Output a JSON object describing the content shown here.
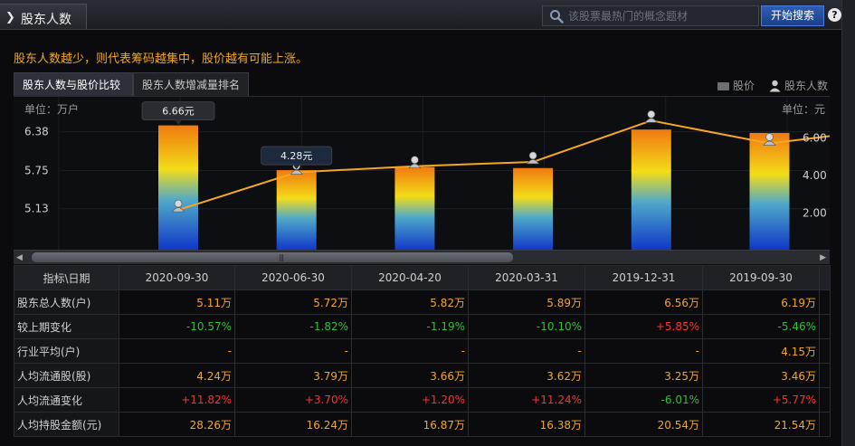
{
  "header": {
    "title": "股东人数",
    "search_placeholder": "该股票最热门的概念题材",
    "search_button": "开始搜索",
    "help": "?"
  },
  "tip": "股东人数越少，则代表筹码越集中，股价越有可能上涨。",
  "tabs": [
    {
      "label": "股东人数与股价比较",
      "active": true
    },
    {
      "label": "股东人数增减量排名",
      "active": false
    }
  ],
  "legend": {
    "price": "股价",
    "holders": "股东人数"
  },
  "chart_data": {
    "type": "bar",
    "unit_left": "单位：万户",
    "unit_right": "单位：元",
    "left_ticks": [
      "6.38",
      "5.75",
      "5.13"
    ],
    "right_ticks": [
      "6.00",
      "4.00",
      "2.00"
    ],
    "categories": [
      "2020-09-30",
      "2020-06-30",
      "2020-04-20",
      "2020-03-31",
      "2019-12-31",
      "2019-09-30"
    ],
    "series": [
      {
        "name": "股价",
        "type": "bar",
        "values": [
          6.66,
          4.28,
          4.45,
          4.39,
          6.44,
          6.26
        ]
      },
      {
        "name": "股东人数",
        "type": "line",
        "values": [
          5.11,
          5.72,
          5.82,
          5.89,
          6.56,
          6.19
        ]
      }
    ],
    "price_labels": [
      "6.66元",
      "4.28元"
    ],
    "colors": {
      "bar_top": "#f07a10",
      "bar_mid": "#f3dc18",
      "bar_bottom": "#0f35c8",
      "line": "#f5a623"
    }
  },
  "table": {
    "header_label": "指标\\日期",
    "dates": [
      "2020-09-30",
      "2020-06-30",
      "2020-04-20",
      "2020-03-31",
      "2019-12-31",
      "2019-09-30"
    ],
    "rows": [
      {
        "label": "股东总人数(户)",
        "values": [
          "5.11万",
          "5.72万",
          "5.82万",
          "5.89万",
          "6.56万",
          "6.19万"
        ],
        "colors": [
          "orange",
          "orange",
          "orange",
          "orange",
          "orange",
          "orange"
        ]
      },
      {
        "label": "较上期变化",
        "values": [
          "-10.57%",
          "-1.82%",
          "-1.19%",
          "-10.10%",
          "+5.85%",
          "-5.46%"
        ],
        "colors": [
          "green",
          "green",
          "green",
          "green",
          "red",
          "green"
        ]
      },
      {
        "label": "行业平均(户)",
        "values": [
          "-",
          "-",
          "-",
          "-",
          "-",
          "4.15万"
        ],
        "colors": [
          "orange",
          "orange",
          "orange",
          "orange",
          "orange",
          "orange"
        ]
      },
      {
        "label": "人均流通股(股)",
        "values": [
          "4.24万",
          "3.79万",
          "3.66万",
          "3.62万",
          "3.25万",
          "3.46万"
        ],
        "colors": [
          "orange",
          "orange",
          "orange",
          "orange",
          "orange",
          "orange"
        ]
      },
      {
        "label": "人均流通变化",
        "values": [
          "+11.82%",
          "+3.70%",
          "+1.20%",
          "+11.24%",
          "-6.01%",
          "+5.77%"
        ],
        "colors": [
          "red",
          "red",
          "red",
          "red",
          "green",
          "red"
        ]
      },
      {
        "label": "人均持股金额(元)",
        "values": [
          "28.26万",
          "16.24万",
          "16.87万",
          "16.38万",
          "20.54万",
          "21.54万"
        ],
        "colors": [
          "orange",
          "orange",
          "orange",
          "orange",
          "orange",
          "orange"
        ]
      }
    ]
  }
}
